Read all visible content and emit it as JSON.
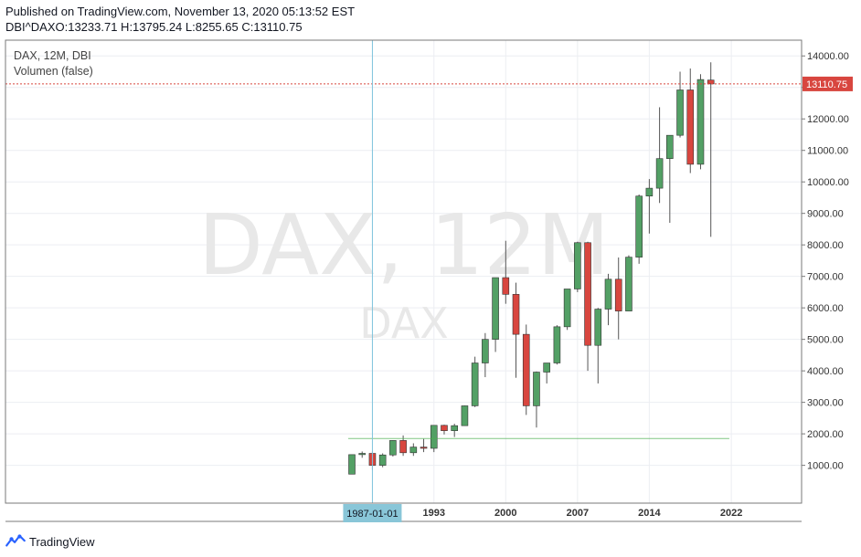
{
  "header": {
    "published": "Published on TradingView.com, November 13, 2020 05:13:52 EST",
    "ohlc": "DBI^DAXO:13233.71 H:13795.24 L:8255.65 C:13110.75"
  },
  "legend": {
    "symbol": "DAX, 12M, DBI",
    "volume": "Volumen (false)"
  },
  "watermark": {
    "big": "DAX, 12M",
    "small": "DAX"
  },
  "crosshair": {
    "date_label": "1987-01-01",
    "year": 1987
  },
  "footer": {
    "brand": "TradingView"
  },
  "colors": {
    "up": "#53a065",
    "down": "#d8463f",
    "wick": "#555555",
    "price_line": "#d8463f",
    "crosshair": "#7fc3dc",
    "crosshair_label_bg": "#89c6d8",
    "ma_line": "#4caf50",
    "grid": "#eceef2",
    "axis": "#7a7a7a"
  },
  "chart_data": {
    "type": "candlestick",
    "title": "DAX, 12M, DBI",
    "last_price": 13110.75,
    "last_price_label": "13110.75",
    "y_axis": {
      "ticks": [
        1000,
        2000,
        3000,
        4000,
        5000,
        6000,
        7000,
        8000,
        9000,
        10000,
        11000,
        12000,
        13000,
        14000
      ],
      "tick_labels": [
        "1000.00",
        "2000.00",
        "3000.00",
        "4000.00",
        "5000.00",
        "6000.00",
        "7000.00",
        "8000.00",
        "9000.00",
        "10000.00",
        "11000.00",
        "12000.00",
        "13000.00",
        "14000.00"
      ],
      "range": [
        -200,
        14500
      ]
    },
    "x_axis": {
      "tick_years": [
        1993,
        2000,
        2007,
        2014,
        2022
      ],
      "tick_labels": [
        "1993",
        "2000",
        "2007",
        "2014",
        "2022"
      ],
      "range": [
        1985.0,
        2028.0
      ]
    },
    "horizontal_line": {
      "value": 1850,
      "from_year": 1985,
      "to_year": 2021
    },
    "candles": [
      {
        "year": 1985,
        "open": 720,
        "high": 1340,
        "low": 720,
        "close": 1340
      },
      {
        "year": 1986,
        "open": 1340,
        "high": 1440,
        "low": 1240,
        "close": 1380
      },
      {
        "year": 1987,
        "open": 1380,
        "high": 1440,
        "low": 860,
        "close": 1000
      },
      {
        "year": 1988,
        "open": 1000,
        "high": 1380,
        "low": 940,
        "close": 1330
      },
      {
        "year": 1989,
        "open": 1330,
        "high": 1800,
        "low": 1280,
        "close": 1790
      },
      {
        "year": 1990,
        "open": 1790,
        "high": 1950,
        "low": 1300,
        "close": 1400
      },
      {
        "year": 1991,
        "open": 1400,
        "high": 1700,
        "low": 1300,
        "close": 1580
      },
      {
        "year": 1992,
        "open": 1580,
        "high": 1840,
        "low": 1420,
        "close": 1540
      },
      {
        "year": 1993,
        "open": 1540,
        "high": 2270,
        "low": 1420,
        "close": 2270
      },
      {
        "year": 1994,
        "open": 2270,
        "high": 2290,
        "low": 1980,
        "close": 2100
      },
      {
        "year": 1995,
        "open": 2100,
        "high": 2320,
        "low": 1900,
        "close": 2260
      },
      {
        "year": 1996,
        "open": 2260,
        "high": 2900,
        "low": 2260,
        "close": 2890
      },
      {
        "year": 1997,
        "open": 2890,
        "high": 4450,
        "low": 2850,
        "close": 4250
      },
      {
        "year": 1998,
        "open": 4250,
        "high": 5200,
        "low": 3800,
        "close": 5000
      },
      {
        "year": 1999,
        "open": 5000,
        "high": 6950,
        "low": 4600,
        "close": 6960
      },
      {
        "year": 2000,
        "open": 6960,
        "high": 8130,
        "low": 6130,
        "close": 6430
      },
      {
        "year": 2001,
        "open": 6430,
        "high": 6800,
        "low": 3780,
        "close": 5160
      },
      {
        "year": 2002,
        "open": 5160,
        "high": 5470,
        "low": 2600,
        "close": 2890
      },
      {
        "year": 2003,
        "open": 2890,
        "high": 3980,
        "low": 2200,
        "close": 3960
      },
      {
        "year": 2004,
        "open": 3960,
        "high": 4200,
        "low": 3600,
        "close": 4250
      },
      {
        "year": 2005,
        "open": 4250,
        "high": 5450,
        "low": 4200,
        "close": 5400
      },
      {
        "year": 2006,
        "open": 5400,
        "high": 6600,
        "low": 5300,
        "close": 6600
      },
      {
        "year": 2007,
        "open": 6600,
        "high": 8100,
        "low": 6500,
        "close": 8070
      },
      {
        "year": 2008,
        "open": 8070,
        "high": 8100,
        "low": 4000,
        "close": 4810
      },
      {
        "year": 2009,
        "open": 4810,
        "high": 6000,
        "low": 3600,
        "close": 5960
      },
      {
        "year": 2010,
        "open": 5960,
        "high": 7080,
        "low": 5450,
        "close": 6910
      },
      {
        "year": 2011,
        "open": 6910,
        "high": 7600,
        "low": 5000,
        "close": 5900
      },
      {
        "year": 2012,
        "open": 5900,
        "high": 7670,
        "low": 5900,
        "close": 7610
      },
      {
        "year": 2013,
        "open": 7610,
        "high": 9600,
        "low": 7400,
        "close": 9550
      },
      {
        "year": 2014,
        "open": 9550,
        "high": 10090,
        "low": 8360,
        "close": 9800
      },
      {
        "year": 2015,
        "open": 9800,
        "high": 12370,
        "low": 9330,
        "close": 10740
      },
      {
        "year": 2016,
        "open": 10740,
        "high": 11480,
        "low": 8700,
        "close": 11480
      },
      {
        "year": 2017,
        "open": 11480,
        "high": 13500,
        "low": 11410,
        "close": 12920
      },
      {
        "year": 2018,
        "open": 12920,
        "high": 13600,
        "low": 10280,
        "close": 10560
      },
      {
        "year": 2019,
        "open": 10560,
        "high": 13420,
        "low": 10400,
        "close": 13250
      },
      {
        "year": 2020,
        "open": 13233.71,
        "high": 13795.24,
        "low": 8255.65,
        "close": 13110.75
      }
    ]
  }
}
